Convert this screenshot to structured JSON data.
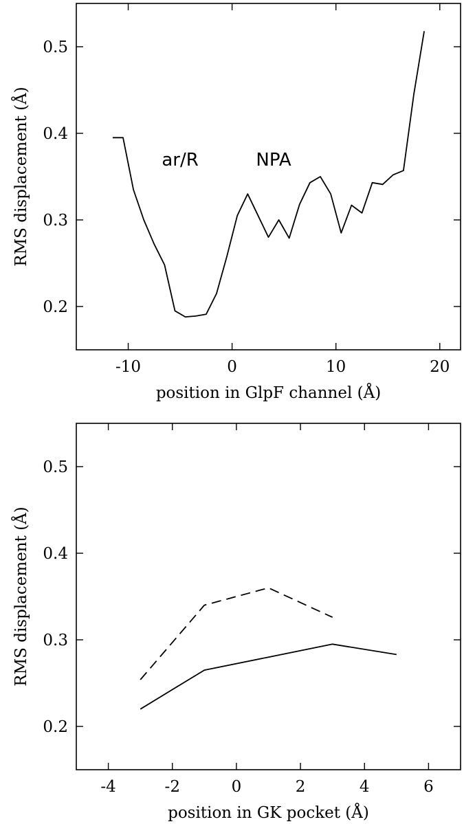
{
  "chart_data": [
    {
      "type": "line",
      "title": "",
      "xlabel": "position in GlpF channel (Å)",
      "ylabel": "RMS displacement (Å)",
      "xlim": [
        -15,
        22
      ],
      "ylim": [
        0.15,
        0.55
      ],
      "xticks": [
        -10,
        0,
        10,
        20
      ],
      "xtick_labels": [
        "-10",
        "0",
        "10",
        "20"
      ],
      "yticks": [
        0.2,
        0.3,
        0.4,
        0.5
      ],
      "ytick_labels": [
        "0.2",
        "0.3",
        "0.4",
        "0.5"
      ],
      "grid": false,
      "annotations": [
        {
          "text": "ar/R",
          "x": -5,
          "y": 0.37
        },
        {
          "text": "NPA",
          "x": 4,
          "y": 0.37
        }
      ],
      "series": [
        {
          "style": "solid",
          "x": [
            -11.5,
            -10.5,
            -9.5,
            -8.5,
            -7.5,
            -6.5,
            -5.5,
            -4.5,
            -3.5,
            -2.5,
            -1.5,
            -0.5,
            0.5,
            1.5,
            2.5,
            3.5,
            4.5,
            5.5,
            6.5,
            7.5,
            8.5,
            9.5,
            10.5,
            11.5,
            12.5,
            13.5,
            14.5,
            15.5,
            16.5,
            17.5,
            18.5
          ],
          "y": [
            0.395,
            0.395,
            0.335,
            0.3,
            0.272,
            0.248,
            0.195,
            0.188,
            0.189,
            0.191,
            0.215,
            0.258,
            0.305,
            0.33,
            0.305,
            0.28,
            0.3,
            0.279,
            0.318,
            0.343,
            0.35,
            0.33,
            0.285,
            0.317,
            0.308,
            0.343,
            0.341,
            0.352,
            0.357,
            0.445,
            0.518
          ]
        }
      ]
    },
    {
      "type": "line",
      "title": "",
      "xlabel": "position in GK pocket (Å)",
      "ylabel": "RMS displacement (Å)",
      "xlim": [
        -5,
        7
      ],
      "ylim": [
        0.15,
        0.55
      ],
      "xticks": [
        -4,
        -2,
        0,
        2,
        4,
        6
      ],
      "xtick_labels": [
        "-4",
        "-2",
        "0",
        "2",
        "4",
        "6"
      ],
      "yticks": [
        0.2,
        0.3,
        0.4,
        0.5
      ],
      "ytick_labels": [
        "0.2",
        "0.3",
        "0.4",
        "0.5"
      ],
      "grid": false,
      "series": [
        {
          "style": "dashed",
          "x": [
            -3,
            -1,
            1,
            3
          ],
          "y": [
            0.254,
            0.34,
            0.36,
            0.326
          ]
        },
        {
          "style": "solid",
          "x": [
            -3,
            -1,
            1,
            3,
            5
          ],
          "y": [
            0.22,
            0.265,
            0.28,
            0.295,
            0.283
          ]
        }
      ]
    }
  ]
}
